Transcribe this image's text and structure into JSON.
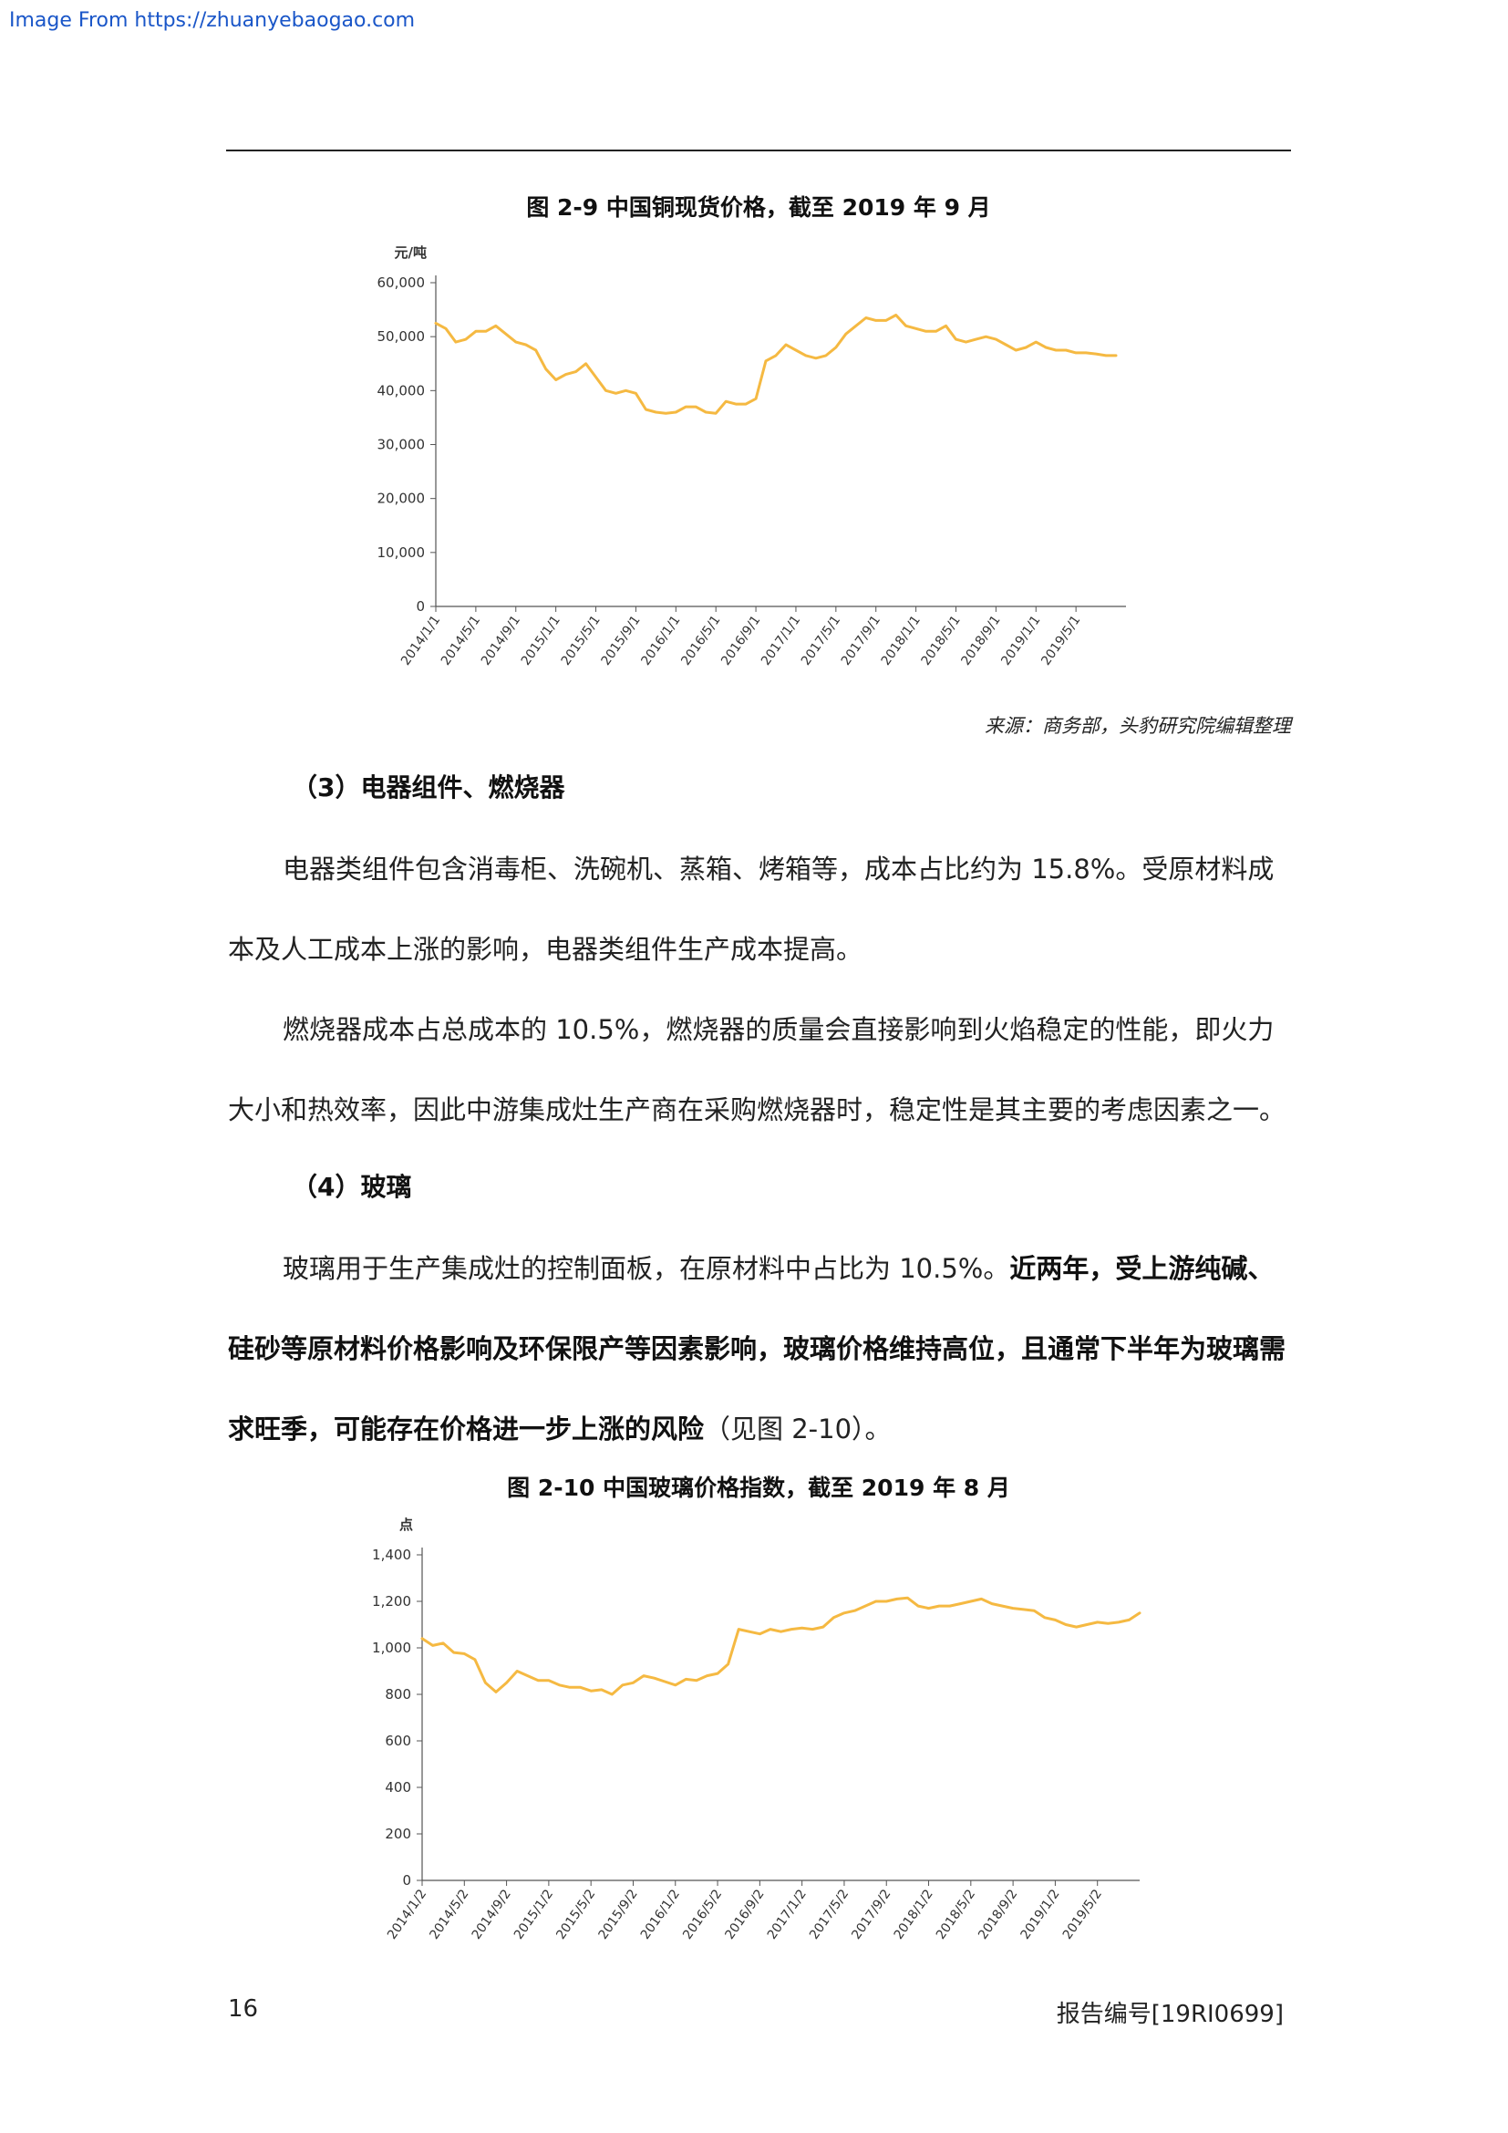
{
  "header": {
    "source_link": "Image From https://zhuanyebaogao.com"
  },
  "figure1": {
    "title": "图 2-9 中国铜现货价格，截至 2019 年 9 月",
    "source": "来源：商务部，头豹研究院编辑整理"
  },
  "section3": {
    "heading": "（3）电器组件、燃烧器",
    "p1_line1": "电器类组件包含消毒柜、洗碗机、蒸箱、烤箱等，成本占比约为 15.8%。受原材料成",
    "p1_line2": "本及人工成本上涨的影响，电器类组件生产成本提高。",
    "p2_line1": "燃烧器成本占总成本的 10.5%，燃烧器的质量会直接影响到火焰稳定的性能，即火力",
    "p2_line2": "大小和热效率，因此中游集成灶生产商在采购燃烧器时，稳定性是其主要的考虑因素之一。"
  },
  "section4": {
    "heading": "（4）玻璃",
    "p1_line1_normal": "玻璃用于生产集成灶的控制面板，在原材料中占比为 10.5%。",
    "p1_line1_bold": "近两年，受上游纯碱、",
    "p1_line2_bold": "硅砂等原材料价格影响及环保限产等因素影响，玻璃价格维持高位，且通常下半年为玻璃需",
    "p1_line3_bold": "求旺季，可能存在价格进一步上涨的风险",
    "p1_line3_normal": "（见图 2-10）。"
  },
  "figure2": {
    "title": "图 2-10 中国玻璃价格指数，截至 2019 年 8 月"
  },
  "footer": {
    "page_number": "16",
    "report_number": "报告编号[19RI0699]"
  },
  "chart_data": [
    {
      "type": "line",
      "title": "图 2-9 中国铜现货价格，截至 2019 年 9 月",
      "ylabel": "元/吨",
      "ylim": [
        0,
        60000
      ],
      "yticks": [
        0,
        10000,
        20000,
        30000,
        40000,
        50000,
        60000
      ],
      "ytick_labels": [
        "0",
        "10,000",
        "20,000",
        "30,000",
        "40,000",
        "50,000",
        "60,000"
      ],
      "xlim": [
        0,
        69
      ],
      "xticks": [
        0,
        4,
        8,
        12,
        16,
        20,
        24,
        28,
        32,
        36,
        40,
        44,
        48,
        52,
        56,
        60,
        64
      ],
      "xtick_labels": [
        "2014/1/1",
        "2014/5/1",
        "2014/9/1",
        "2015/1/1",
        "2015/5/1",
        "2015/9/1",
        "2016/1/1",
        "2016/5/1",
        "2016/9/1",
        "2017/1/1",
        "2017/5/1",
        "2017/9/1",
        "2018/1/1",
        "2018/5/1",
        "2018/9/1",
        "2019/1/1",
        "2019/5/1"
      ],
      "color": "#f5b942",
      "grid": false,
      "series": [
        {
          "x": [
            0,
            1,
            2,
            3,
            4,
            5,
            6,
            7,
            8,
            9,
            10,
            11,
            12,
            13,
            14,
            15,
            16,
            17,
            18,
            19,
            20,
            21,
            22,
            23,
            24,
            25,
            26,
            27,
            28,
            29,
            30,
            31,
            32,
            33,
            34,
            35,
            36,
            37,
            38,
            39,
            40,
            41,
            42,
            43,
            44,
            45,
            46,
            47,
            48,
            49,
            50,
            51,
            52,
            53,
            54,
            55,
            56,
            57,
            58,
            59,
            60,
            61,
            62,
            63,
            64,
            65,
            66,
            67,
            68
          ],
          "values": [
            52500,
            51500,
            49000,
            49500,
            51000,
            51000,
            52000,
            50500,
            49000,
            48500,
            47500,
            44000,
            42000,
            43000,
            43500,
            45000,
            42500,
            40000,
            39500,
            40000,
            39500,
            36500,
            36000,
            35800,
            36000,
            37000,
            37000,
            36000,
            35800,
            38000,
            37500,
            37500,
            38500,
            45500,
            46500,
            48500,
            47500,
            46500,
            46000,
            46500,
            48000,
            50500,
            52000,
            53500,
            53000,
            53000,
            54000,
            52000,
            51500,
            51000,
            51000,
            52000,
            49500,
            49000,
            49500,
            50000,
            49500,
            48500,
            47500,
            48000,
            49000,
            48000,
            47500,
            47500,
            47000,
            47000,
            46800,
            46500,
            46500
          ]
        }
      ]
    },
    {
      "type": "line",
      "title": "图 2-10 中国玻璃价格指数，截至 2019 年 8 月",
      "ylabel": "点",
      "ylim": [
        0,
        1400
      ],
      "yticks": [
        0,
        200,
        400,
        600,
        800,
        1000,
        1200,
        1400
      ],
      "ytick_labels": [
        "0",
        "200",
        "400",
        "600",
        "800",
        "1,000",
        "1,200",
        "1,400"
      ],
      "xlim": [
        0,
        68
      ],
      "xticks": [
        0,
        4,
        8,
        12,
        16,
        20,
        24,
        28,
        32,
        36,
        40,
        44,
        48,
        52,
        56,
        60,
        64
      ],
      "xtick_labels": [
        "2014/1/2",
        "2014/5/2",
        "2014/9/2",
        "2015/1/2",
        "2015/5/2",
        "2015/9/2",
        "2016/1/2",
        "2016/5/2",
        "2016/9/2",
        "2017/1/2",
        "2017/5/2",
        "2017/9/2",
        "2018/1/2",
        "2018/5/2",
        "2018/9/2",
        "2019/1/2",
        "2019/5/2"
      ],
      "color": "#f5b942",
      "grid": false,
      "series": [
        {
          "x": [
            0,
            1,
            2,
            3,
            4,
            5,
            6,
            7,
            8,
            9,
            10,
            11,
            12,
            13,
            14,
            15,
            16,
            17,
            18,
            19,
            20,
            21,
            22,
            23,
            24,
            25,
            26,
            27,
            28,
            29,
            30,
            31,
            32,
            33,
            34,
            35,
            36,
            37,
            38,
            39,
            40,
            41,
            42,
            43,
            44,
            45,
            46,
            47,
            48,
            49,
            50,
            51,
            52,
            53,
            54,
            55,
            56,
            57,
            58,
            59,
            60,
            61,
            62,
            63,
            64,
            65,
            66,
            67,
            68
          ],
          "values": [
            1040,
            1010,
            1020,
            980,
            975,
            950,
            850,
            810,
            850,
            900,
            880,
            860,
            860,
            840,
            830,
            830,
            815,
            820,
            800,
            840,
            850,
            880,
            870,
            855,
            840,
            865,
            860,
            880,
            890,
            930,
            1080,
            1070,
            1060,
            1080,
            1070,
            1080,
            1085,
            1080,
            1090,
            1130,
            1150,
            1160,
            1180,
            1200,
            1200,
            1210,
            1215,
            1180,
            1170,
            1180,
            1180,
            1190,
            1200,
            1210,
            1190,
            1180,
            1170,
            1165,
            1160,
            1130,
            1120,
            1100,
            1090,
            1100,
            1110,
            1105,
            1110,
            1120,
            1150
          ]
        }
      ]
    }
  ]
}
